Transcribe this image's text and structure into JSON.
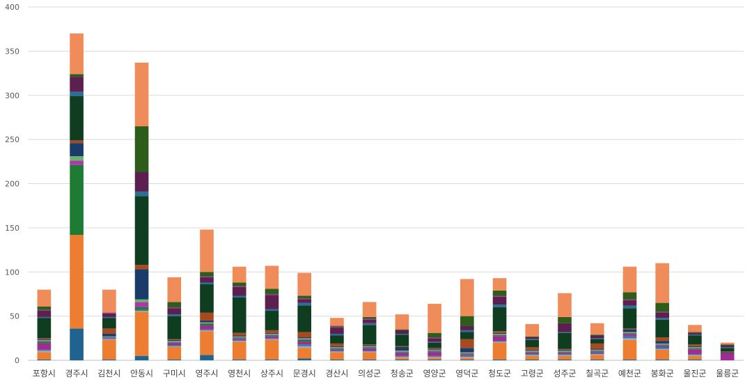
{
  "chart_data": {
    "type": "bar",
    "stacked": true,
    "title": "",
    "xlabel": "",
    "ylabel": "",
    "ylim": [
      0,
      400
    ],
    "yticks": [
      0,
      50,
      100,
      150,
      200,
      250,
      300,
      350,
      400
    ],
    "grid": true,
    "legend": "none",
    "categories": [
      "포항시",
      "경주시",
      "김천시",
      "안동시",
      "구미시",
      "영주시",
      "영천시",
      "상주시",
      "문경시",
      "경산시",
      "의성군",
      "청송군",
      "영양군",
      "영덕군",
      "청도군",
      "고령군",
      "성주군",
      "칠곡군",
      "예천군",
      "봉화군",
      "울진군",
      "울릉군"
    ],
    "series": [
      {
        "color": "#1f6391",
        "values": [
          1,
          36,
          1,
          5,
          1,
          6,
          1,
          1,
          2,
          1,
          1,
          1,
          1,
          1,
          1,
          1,
          1,
          1,
          1,
          1,
          1,
          0
        ]
      },
      {
        "color": "#ed7d31",
        "values": [
          8,
          106,
          22,
          50,
          14,
          27,
          20,
          22,
          12,
          8,
          8,
          2,
          2,
          2,
          19,
          4,
          4,
          5,
          22,
          11,
          4,
          0
        ]
      },
      {
        "color": "#a5a5a5",
        "values": [
          2,
          0,
          1,
          1,
          1,
          1,
          1,
          1,
          2,
          1,
          1,
          1,
          1,
          1,
          1,
          1,
          1,
          1,
          2,
          1,
          1,
          0
        ]
      },
      {
        "color": "#2e75b6",
        "values": [
          1,
          0,
          1,
          1,
          1,
          1,
          1,
          1,
          2,
          1,
          1,
          1,
          1,
          1,
          1,
          1,
          1,
          1,
          2,
          2,
          1,
          0
        ]
      },
      {
        "color": "#a02b93",
        "values": [
          7,
          0,
          1,
          0,
          2,
          4,
          1,
          2,
          3,
          1,
          2,
          3,
          4,
          1,
          5,
          1,
          1,
          1,
          2,
          1,
          5,
          8
        ]
      },
      {
        "color": "#1e7b34",
        "values": [
          2,
          79,
          0,
          3,
          1,
          2,
          1,
          1,
          2,
          1,
          1,
          1,
          1,
          1,
          1,
          1,
          1,
          1,
          1,
          1,
          1,
          0
        ]
      },
      {
        "color": "#a63da6",
        "values": [
          1,
          5,
          0,
          6,
          1,
          1,
          1,
          1,
          1,
          1,
          1,
          1,
          1,
          1,
          1,
          1,
          1,
          1,
          1,
          1,
          1,
          0
        ]
      },
      {
        "color": "#6bb36b",
        "values": [
          1,
          5,
          1,
          3,
          1,
          1,
          1,
          1,
          1,
          1,
          1,
          1,
          1,
          1,
          1,
          1,
          1,
          1,
          1,
          1,
          1,
          0
        ]
      },
      {
        "color": "#1a3c6b",
        "values": [
          1,
          15,
          3,
          34,
          1,
          2,
          1,
          1,
          1,
          1,
          1,
          4,
          1,
          5,
          1,
          1,
          1,
          1,
          3,
          3,
          1,
          1
        ]
      },
      {
        "color": "#a84a1f",
        "values": [
          1,
          3,
          6,
          5,
          1,
          9,
          3,
          3,
          6,
          3,
          1,
          1,
          1,
          10,
          2,
          3,
          1,
          6,
          1,
          4,
          2,
          1
        ]
      },
      {
        "color": "#0f3d20",
        "values": [
          23,
          50,
          12,
          78,
          26,
          32,
          40,
          22,
          30,
          9,
          22,
          13,
          6,
          8,
          27,
          8,
          18,
          5,
          23,
          20,
          10,
          4
        ]
      },
      {
        "color": "#2a6f97",
        "values": [
          1,
          5,
          1,
          5,
          2,
          2,
          2,
          2,
          3,
          2,
          2,
          1,
          1,
          2,
          3,
          1,
          1,
          1,
          3,
          2,
          1,
          1
        ]
      },
      {
        "color": "#5c1f4f",
        "values": [
          7,
          17,
          4,
          22,
          7,
          6,
          10,
          16,
          4,
          7,
          4,
          4,
          4,
          5,
          9,
          2,
          10,
          3,
          6,
          6,
          2,
          2
        ]
      },
      {
        "color": "#8a3a8a",
        "values": [
          1,
          0,
          1,
          0,
          1,
          1,
          1,
          1,
          1,
          1,
          1,
          0,
          1,
          0,
          1,
          0,
          0,
          0,
          1,
          1,
          0,
          0
        ]
      },
      {
        "color": "#2d5d1a",
        "values": [
          4,
          3,
          0,
          52,
          6,
          5,
          4,
          6,
          3,
          1,
          2,
          1,
          5,
          11,
          6,
          1,
          7,
          1,
          8,
          10,
          1,
          1
        ]
      },
      {
        "color": "#f08c5a",
        "values": [
          19,
          46,
          26,
          72,
          28,
          48,
          18,
          26,
          26,
          9,
          17,
          17,
          33,
          42,
          14,
          14,
          27,
          13,
          29,
          45,
          8,
          2
        ]
      }
    ]
  }
}
